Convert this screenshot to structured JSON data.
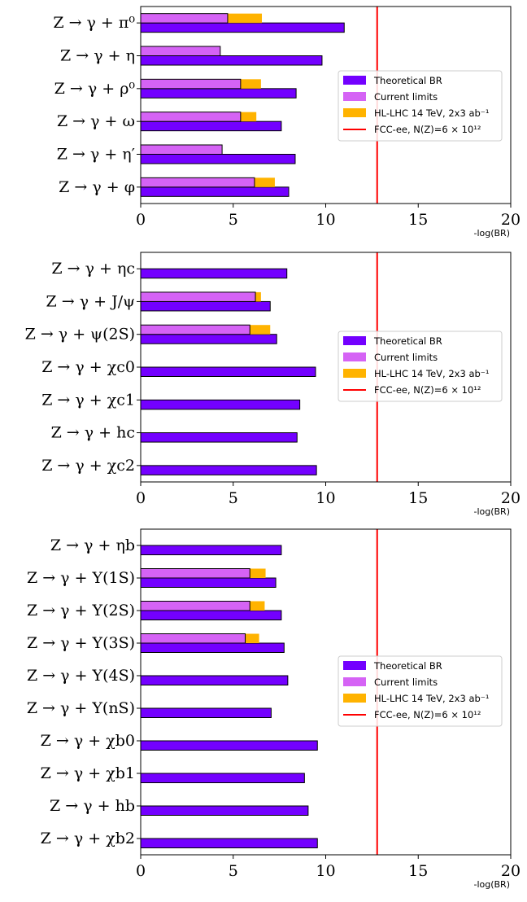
{
  "colors": {
    "theory": "#7300FF",
    "current": "#D563F5",
    "hllhc": "#FFB300",
    "fcc": "#FF0000",
    "edge": "#000000"
  },
  "legend": {
    "theory": "Theoretical BR",
    "current": "Current limits",
    "hllhc": "HL-LHC 14 TeV, 2x3 ab⁻¹",
    "fcc": "FCC-ee, N(Z)=6 × 10¹²"
  },
  "chart_data": [
    {
      "type": "bar",
      "orientation": "horizontal",
      "xlabel": "-log(BR)",
      "xlim": [
        0,
        20
      ],
      "xticks": [
        0,
        5,
        10,
        15,
        20
      ],
      "fcc_line": 12.78,
      "categories": [
        "Z → γ + π⁰",
        "Z → γ + η",
        "Z → γ + ρ⁰",
        "Z → γ + ω",
        "Z → γ + η′",
        "Z → γ + φ"
      ],
      "series": [
        {
          "name": "Theoretical BR",
          "values": [
            11.0,
            9.8,
            8.4,
            7.6,
            8.35,
            8.0
          ]
        },
        {
          "name": "Current limits",
          "values": [
            4.7,
            4.3,
            5.4,
            5.4,
            4.4,
            6.15
          ]
        },
        {
          "name": "HL-LHC 14 TeV, 2x3 ab⁻¹",
          "values": [
            6.55,
            null,
            6.5,
            6.25,
            null,
            7.25
          ]
        }
      ]
    },
    {
      "type": "bar",
      "orientation": "horizontal",
      "xlabel": "-log(BR)",
      "xlim": [
        0,
        20
      ],
      "xticks": [
        0,
        5,
        10,
        15,
        20
      ],
      "fcc_line": 12.78,
      "categories": [
        "Z → γ + ηc",
        "Z → γ + J/ψ",
        "Z → γ + ψ(2S)",
        "Z → γ + χc0",
        "Z → γ + χc1",
        "Z → γ + hc",
        "Z → γ + χc2"
      ],
      "series": [
        {
          "name": "Theoretical BR",
          "values": [
            7.9,
            7.0,
            7.35,
            9.45,
            8.6,
            8.45,
            9.5
          ]
        },
        {
          "name": "Current limits",
          "values": [
            null,
            6.2,
            5.9,
            null,
            null,
            null,
            null
          ]
        },
        {
          "name": "HL-LHC 14 TeV, 2x3 ab⁻¹",
          "values": [
            null,
            6.5,
            7.0,
            null,
            null,
            null,
            null
          ]
        }
      ]
    },
    {
      "type": "bar",
      "orientation": "horizontal",
      "xlabel": "-log(BR)",
      "xlim": [
        0,
        20
      ],
      "xticks": [
        0,
        5,
        10,
        15,
        20
      ],
      "fcc_line": 12.78,
      "categories": [
        "Z → γ + ηb",
        "Z → γ + Υ(1S)",
        "Z → γ + Υ(2S)",
        "Z → γ + Υ(3S)",
        "Z → γ + Υ(4S)",
        "Z → γ + Υ(nS)",
        "Z → γ + χb0",
        "Z → γ + χb1",
        "Z → γ + hb",
        "Z → γ + χb2"
      ],
      "series": [
        {
          "name": "Theoretical BR",
          "values": [
            7.6,
            7.3,
            7.6,
            7.75,
            7.95,
            7.05,
            9.55,
            8.85,
            9.05,
            9.55
          ]
        },
        {
          "name": "Current limits",
          "values": [
            null,
            5.9,
            5.9,
            5.65,
            null,
            null,
            null,
            null,
            null,
            null
          ]
        },
        {
          "name": "HL-LHC 14 TeV, 2x3 ab⁻¹",
          "values": [
            null,
            6.75,
            6.7,
            6.4,
            null,
            null,
            null,
            null,
            null,
            null
          ]
        }
      ]
    }
  ]
}
